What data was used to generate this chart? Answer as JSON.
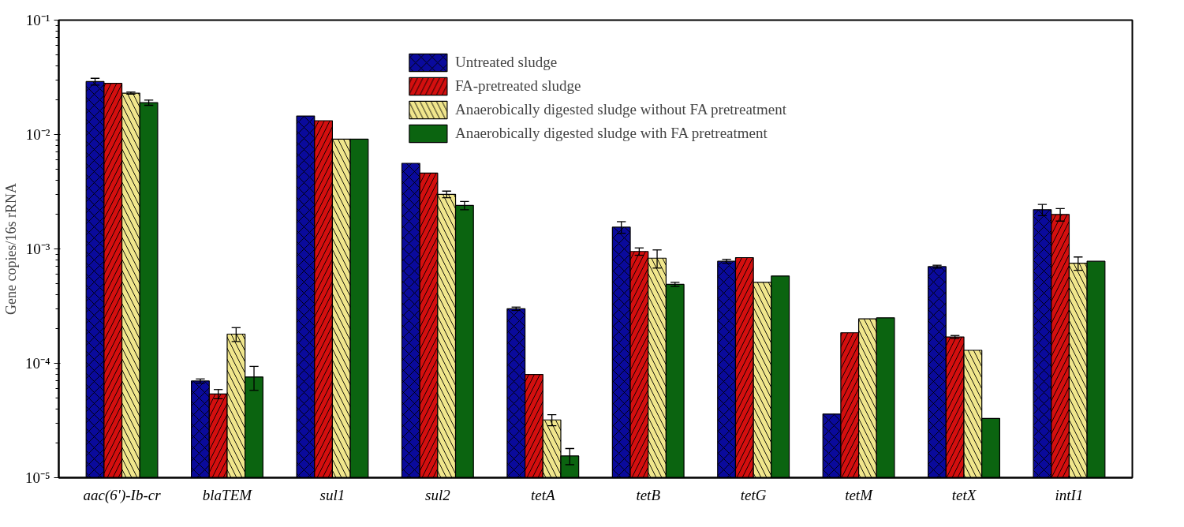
{
  "chart_data": {
    "type": "bar",
    "ylabel": "Gene copies/16s rRNA",
    "log": true,
    "categories": [
      "aac(6')-Ib-cr",
      "blaTEM",
      "sul1",
      "sul2",
      "tetA",
      "tetB",
      "tetG",
      "tetM",
      "tetX",
      "intI1"
    ],
    "ylim": [
      1e-05,
      0.1
    ],
    "yticks": [
      {
        "value": 1e-05,
        "label": "10⁻⁵"
      },
      {
        "value": 0.0001,
        "label": "10⁻⁴"
      },
      {
        "value": 0.001,
        "label": "10⁻³"
      },
      {
        "value": 0.01,
        "label": "10⁻²"
      },
      {
        "value": 0.1,
        "label": "10⁻¹"
      }
    ],
    "grid": false,
    "legend": "top",
    "series": [
      {
        "name": "Untreated sludge",
        "color": "#0a0a9c",
        "values": [
          0.029,
          7e-05,
          0.0145,
          0.0056,
          0.0003,
          0.00155,
          0.00078,
          3.6e-05,
          0.0007,
          0.0022
        ],
        "errors": [
          0.002,
          3e-06,
          null,
          null,
          1e-05,
          0.00018,
          3e-05,
          null,
          2e-05,
          0.00025
        ]
      },
      {
        "name": "FA-pretreated sludge",
        "color": "#d40f0f",
        "values": [
          0.028,
          5.4e-05,
          0.0132,
          0.0046,
          8e-05,
          0.00095,
          0.00084,
          0.000185,
          0.00017,
          0.002
        ],
        "errors": [
          null,
          5e-06,
          null,
          null,
          null,
          7e-05,
          null,
          null,
          5e-06,
          0.00025
        ]
      },
      {
        "name": "Anaerobically digested sludge without FA pretreatment",
        "color": "#f0e68c",
        "values": [
          0.023,
          0.00018,
          0.0091,
          0.003,
          3.2e-05,
          0.00083,
          0.00051,
          0.000245,
          0.00013,
          0.00075
        ],
        "errors": [
          0.0005,
          2.5e-05,
          null,
          0.0002,
          3.5e-06,
          0.00015,
          null,
          null,
          null,
          0.0001
        ]
      },
      {
        "name": "Anaerobically digested sludge with FA pretreatment",
        "color": "#0b6410",
        "values": [
          0.019,
          7.6e-05,
          0.0091,
          0.0024,
          1.55e-05,
          0.00049,
          0.00058,
          0.00025,
          3.3e-05,
          0.00078
        ],
        "errors": [
          0.001,
          1.8e-05,
          null,
          0.0002,
          2.5e-06,
          2e-05,
          null,
          null,
          null,
          null
        ]
      }
    ]
  }
}
